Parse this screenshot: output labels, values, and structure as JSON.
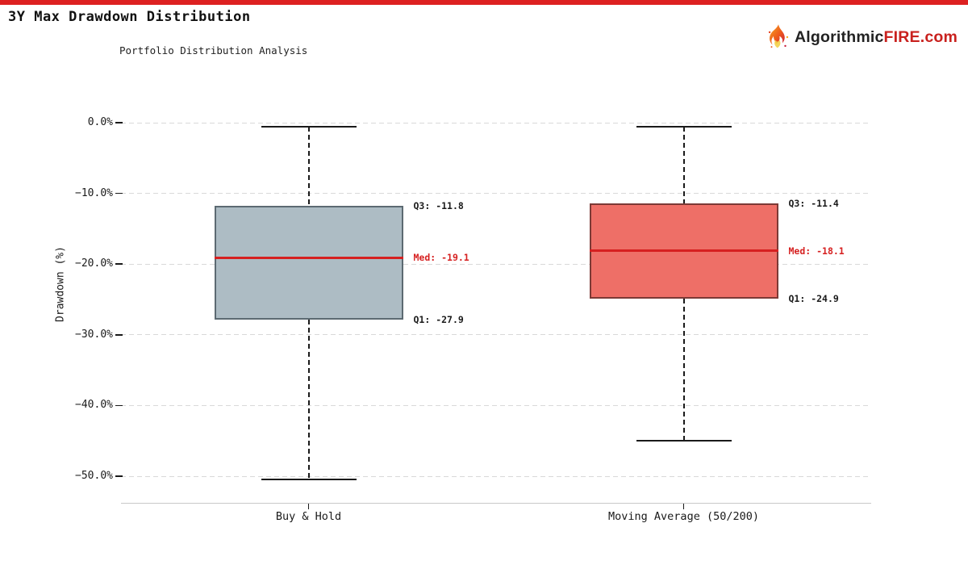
{
  "page": {
    "title": "3Y Max Drawdown Distribution",
    "subtitle": "Portfolio Distribution Analysis",
    "top_bar_color": "#dd2121",
    "brand": {
      "prefix": "Algorithmic",
      "suffix": "FIRE",
      "tld": ".com",
      "prefix_color": "#222222",
      "suffix_color": "#c9211e",
      "flame_icon": "flame-icon"
    }
  },
  "chart_data": {
    "type": "boxplot",
    "title": "3Y Max Drawdown Distribution",
    "subtitle": "Portfolio Distribution Analysis",
    "ylabel": "Drawdown (%)",
    "xlabel": "",
    "grid": true,
    "legend": false,
    "ylim": [
      -53.8,
      2.5
    ],
    "yticks": {
      "values": [
        0,
        -10,
        -20,
        -30,
        -40,
        -50
      ],
      "labels": [
        "0.0%",
        "−10.0%",
        "−20.0%",
        "−30.0%",
        "−40.0%",
        "−50.0%"
      ]
    },
    "categories": [
      "Buy & Hold",
      "Moving Average (50/200)"
    ],
    "series": [
      {
        "name": "Buy & Hold",
        "whisker_high": -0.6,
        "q3": -11.8,
        "median": -19.1,
        "q1": -27.9,
        "whisker_low": -50.4,
        "box_fill": "#adbcc4",
        "box_border": "#5c6a72",
        "labels": {
          "q3": "Q3: -11.8",
          "med": "Med: -19.1",
          "q1": "Q1: -27.9"
        }
      },
      {
        "name": "Moving Average (50/200)",
        "whisker_high": -0.6,
        "q3": -11.4,
        "median": -18.1,
        "q1": -24.9,
        "whisker_low": -45.0,
        "box_fill": "#ee6f67",
        "box_border": "#7c3a36",
        "labels": {
          "q3": "Q3: -11.4",
          "med": "Med: -18.1",
          "q1": "Q1: -24.9"
        }
      }
    ],
    "median_color": "#d62020",
    "annotation_color": "#1a1a1a",
    "median_annotation_color": "#d62020",
    "gridline_color": "#d9d9d9",
    "whisker_color": "#1a1a1a"
  }
}
